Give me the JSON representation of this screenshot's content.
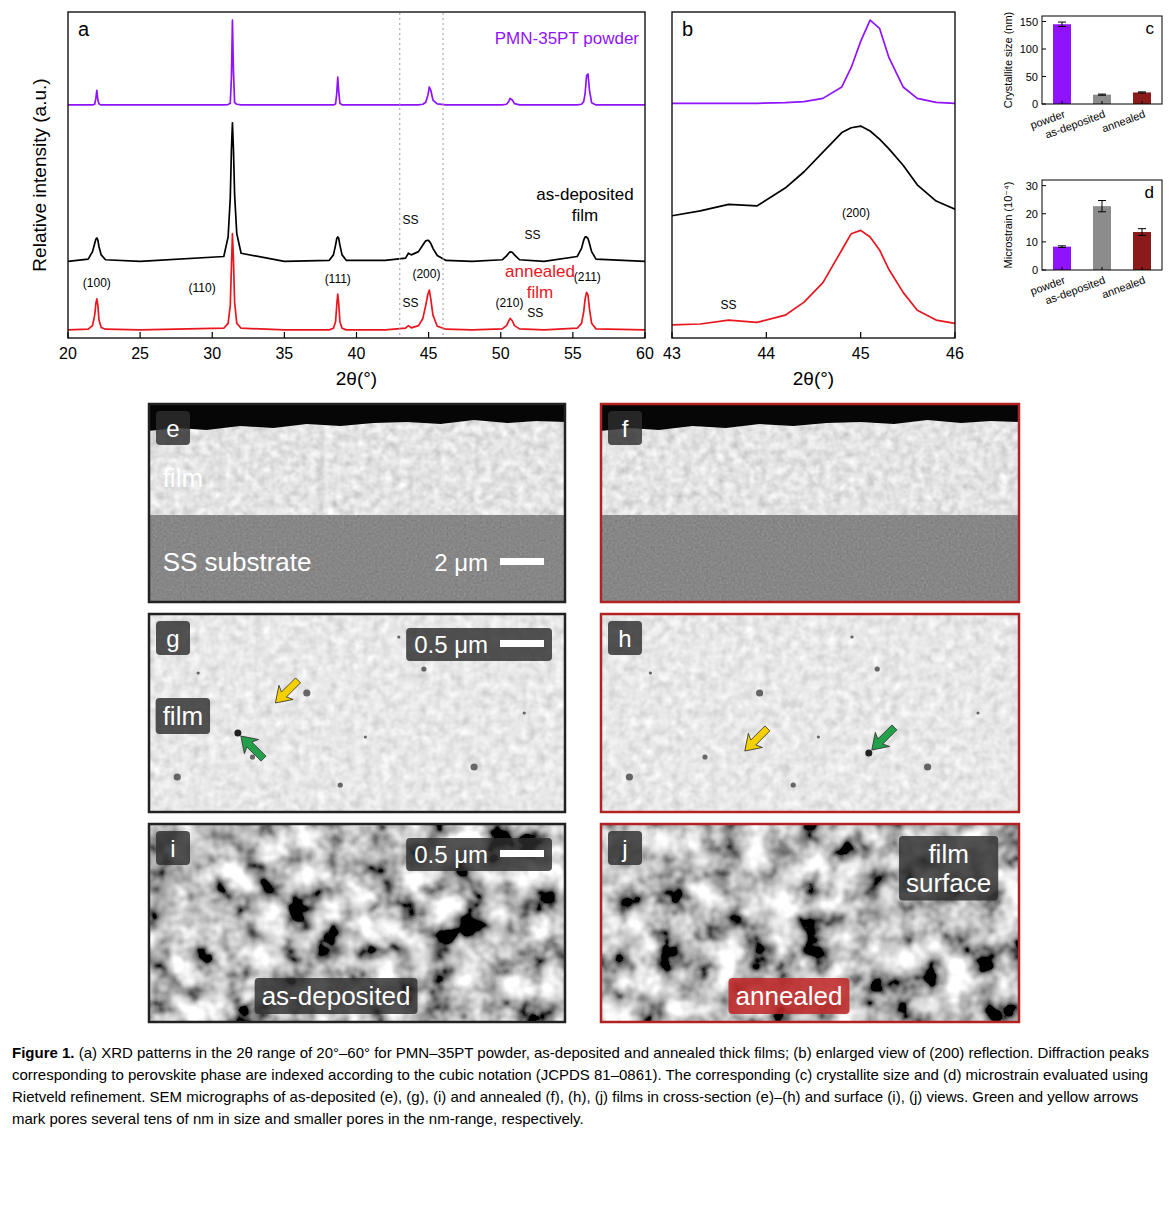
{
  "chart_data": [
    {
      "type": "line",
      "panel": "a",
      "x_label": "2θ(°)",
      "y_label": "Relative intensity (a.u.)",
      "x": [
        20,
        21.4,
        21.7,
        21.85,
        21.93,
        22,
        22.07,
        22.15,
        22.3,
        22.6,
        25,
        30.8,
        31.1,
        31.25,
        31.33,
        31.4,
        31.47,
        31.55,
        31.7,
        32,
        35,
        38.1,
        38.4,
        38.55,
        38.63,
        38.7,
        38.77,
        38.85,
        39,
        39.3,
        42,
        43.4,
        43.6,
        43.8,
        44.3,
        44.6,
        44.8,
        44.95,
        45.05,
        45.15,
        45.3,
        45.6,
        46.2,
        48,
        50.1,
        50.4,
        50.55,
        50.65,
        50.8,
        50.95,
        51.3,
        53,
        55.3,
        55.6,
        55.75,
        55.85,
        55.95,
        56.05,
        56.15,
        56.3,
        56.6,
        60
      ],
      "series": [
        {
          "name": "PMN-35PT powder",
          "color": "#9013fe",
          "values": [
            71.5,
            71.5,
            71.5,
            71.7,
            73.5,
            76,
            73,
            71.8,
            71.5,
            71.5,
            71.5,
            71.5,
            71.6,
            72,
            80,
            97.5,
            82,
            72.2,
            71.7,
            71.5,
            71.5,
            71.5,
            71.5,
            71.8,
            75,
            80,
            75.5,
            72,
            71.5,
            71.5,
            71.5,
            71.5,
            71.5,
            71.5,
            71.5,
            71.7,
            72.3,
            74.5,
            77,
            76,
            73,
            71.8,
            71.5,
            71.5,
            71.5,
            71.7,
            72.5,
            73.5,
            73,
            71.9,
            71.5,
            71.5,
            71.5,
            71.7,
            72.5,
            75,
            80.5,
            81,
            76,
            72.2,
            71.5,
            71.5
          ]
        },
        {
          "name": "as-deposited film",
          "color": "#000000",
          "values": [
            23.5,
            24.2,
            26.5,
            29,
            30.3,
            30.7,
            30,
            28,
            25.5,
            24,
            23.5,
            25,
            31,
            43,
            58,
            66,
            58,
            44,
            32,
            26,
            23.5,
            23.8,
            25.5,
            28.5,
            30.5,
            31,
            30.5,
            28.5,
            25.5,
            23.8,
            23.8,
            24.5,
            26,
            25.5,
            26.5,
            28.5,
            29.8,
            30,
            29.7,
            29,
            27.5,
            25.3,
            23.8,
            23.5,
            24,
            25.2,
            26,
            26.4,
            26.3,
            25.5,
            24,
            23.5,
            25,
            27.5,
            30,
            31,
            31,
            30.5,
            29,
            26.5,
            24.2,
            23.5
          ]
        },
        {
          "name": "annealed film",
          "color": "#e8161e",
          "values": [
            2.5,
            2.7,
            3.8,
            7,
            10.5,
            12,
            10,
            5.5,
            3.2,
            2.7,
            2.5,
            3,
            4.5,
            10,
            22,
            32,
            24,
            11,
            4.5,
            3,
            2.5,
            2.5,
            3,
            5,
            10,
            13.5,
            10.5,
            5,
            3,
            2.5,
            2.5,
            3,
            3.8,
            3.1,
            3.8,
            6,
            10,
            13.5,
            14.7,
            12,
            7,
            3.6,
            2.7,
            2.5,
            2.8,
            3.8,
            5.2,
            6,
            5.3,
            3.8,
            2.8,
            2.5,
            3,
            4.5,
            8,
            12,
            14,
            13.2,
            9,
            4.5,
            2.8,
            2.5
          ]
        }
      ],
      "xlim": [
        20,
        60
      ],
      "xticks": [
        20,
        25,
        30,
        35,
        40,
        45,
        50,
        55,
        60
      ],
      "ylim": [
        0,
        100
      ],
      "tick_labels": "x",
      "annotations": [
        {
          "text": "SS",
          "x": 43.75,
          "y": 35
        },
        {
          "text": "SS",
          "x": 52.2,
          "y": 30.5
        },
        {
          "text": "(100)",
          "x": 22,
          "y": 15.5
        },
        {
          "text": "(110)",
          "x": 29.3,
          "y": 14
        },
        {
          "text": "(111)",
          "x": 38.7,
          "y": 17
        },
        {
          "text": "SS",
          "x": 43.75,
          "y": 9.5
        },
        {
          "text": "(200)",
          "x": 44.85,
          "y": 18.5
        },
        {
          "text": "(210)",
          "x": 50.6,
          "y": 9.5
        },
        {
          "text": "SS",
          "x": 52.4,
          "y": 6.5
        },
        {
          "text": "(211)",
          "x": 56,
          "y": 17.5
        }
      ]
    },
    {
      "type": "line",
      "panel": "b",
      "x_label": "2θ(°)",
      "x": [
        43,
        43.3,
        43.6,
        43.9,
        44.2,
        44.4,
        44.6,
        44.8,
        44.9,
        45,
        45.1,
        45.2,
        45.3,
        45.45,
        45.6,
        45.8,
        46
      ],
      "series": [
        {
          "color": "#9013fe",
          "values": [
            72,
            72,
            72,
            72,
            72.2,
            72.5,
            73.5,
            77,
            83,
            91,
            97.5,
            95,
            86,
            77,
            73.5,
            72.3,
            72
          ]
        },
        {
          "color": "#000000",
          "values": [
            37.5,
            39,
            41,
            40.5,
            46,
            51,
            57,
            63,
            64.5,
            65,
            63.5,
            61,
            58,
            53,
            47,
            42,
            39.5
          ]
        },
        {
          "color": "#e8161e",
          "values": [
            4,
            4.3,
            5.5,
            4.8,
            7,
            11,
            17,
            27,
            32,
            33,
            31,
            27,
            21,
            14,
            8.5,
            5.5,
            4.5
          ]
        }
      ],
      "xlim": [
        43,
        46
      ],
      "xticks": [
        43,
        44,
        45,
        46
      ],
      "ylim": [
        0,
        100
      ],
      "tick_labels": "x",
      "annotations": [
        {
          "text": "SS",
          "x": 43.6,
          "y": 9
        },
        {
          "text": "(200)",
          "x": 44.95,
          "y": 37
        }
      ]
    },
    {
      "type": "bar",
      "panel": "c",
      "y_label": "Crystallite size (nm)",
      "categories": [
        "powder",
        "as-deposited",
        "annealed"
      ],
      "values": [
        145,
        17,
        21
      ],
      "errors": [
        4,
        1,
        1
      ],
      "colors": [
        "#9013fe",
        "#8c8c8c",
        "#8b1a1a"
      ],
      "ylim": [
        0,
        160
      ],
      "yticks": [
        0,
        50,
        100,
        150
      ]
    },
    {
      "type": "bar",
      "panel": "d",
      "y_label": "Microstrain (10⁻⁴)",
      "categories": [
        "powder",
        "as-deposited",
        "annealed"
      ],
      "values": [
        8.3,
        22.7,
        13.5
      ],
      "errors": [
        0.3,
        2,
        1.2
      ],
      "colors": [
        "#9013fe",
        "#8c8c8c",
        "#8b1a1a"
      ],
      "ylim": [
        0,
        32
      ],
      "yticks": [
        0,
        10,
        20,
        30
      ]
    }
  ],
  "micrographs": [
    {
      "panel": "e",
      "labels": [
        "film",
        "SS substrate"
      ],
      "scale_bar": "2 μm"
    },
    {
      "panel": "f"
    },
    {
      "panel": "g",
      "labels": [
        "film"
      ],
      "scale_bar": "0.5 μm"
    },
    {
      "panel": "h"
    },
    {
      "panel": "i",
      "labels": [
        "as-deposited"
      ],
      "scale_bar": "0.5 μm"
    },
    {
      "panel": "j",
      "labels": [
        "film surface",
        "annealed"
      ]
    }
  ],
  "caption": {
    "label": "Figure 1.",
    "text": "(a) XRD patterns in the 2θ range of 20°–60° for PMN–35PT powder, as-deposited and annealed thick films; (b) enlarged view of (200) reflection. Diffraction peaks corresponding to perovskite phase are indexed according to the cubic notation (JCPDS 81–0861). The corresponding (c) crystallite size and (d) microstrain evaluated using Rietveld refinement. SEM micrographs of as-deposited (e), (g), (i) and annealed (f), (h), (j) films in cross-section (e)–(h) and surface (i), (j) views. Green and yellow arrows mark pores several tens of nm in size and smaller pores in the nm-range, respectively."
  }
}
